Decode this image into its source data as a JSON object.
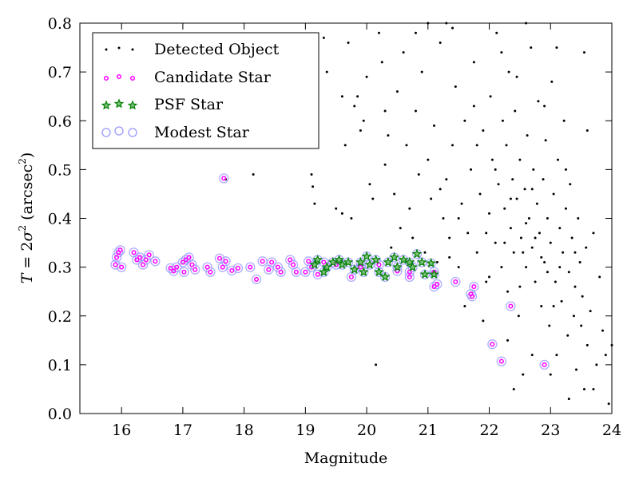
{
  "chart_data": {
    "type": "scatter",
    "xlabel": "Magnitude",
    "ylabel": "T = 2σ² (arcsec²)",
    "xlim": [
      15.32,
      24
    ],
    "ylim": [
      0,
      0.8
    ],
    "xticks": [
      "16",
      "17",
      "18",
      "19",
      "20",
      "21",
      "22",
      "23",
      "24"
    ],
    "yticks": [
      "0.0",
      "0.1",
      "0.2",
      "0.3",
      "0.4",
      "0.5",
      "0.6",
      "0.7",
      "0.8"
    ],
    "legend_position": "top-left",
    "series": [
      {
        "name": "Detected Object",
        "color": "#000000",
        "points": [
          [
            17.7,
            0.48
          ],
          [
            18.15,
            0.49
          ],
          [
            19.1,
            0.49
          ],
          [
            19.12,
            0.465
          ],
          [
            19.15,
            0.43
          ],
          [
            19.2,
            0.58
          ],
          [
            19.3,
            0.77
          ],
          [
            19.35,
            0.7
          ],
          [
            19.5,
            0.42
          ],
          [
            19.6,
            0.41
          ],
          [
            19.65,
            0.55
          ],
          [
            19.7,
            0.76
          ],
          [
            19.75,
            0.4
          ],
          [
            19.8,
            0.63
          ],
          [
            19.85,
            0.65
          ],
          [
            19.9,
            0.58
          ],
          [
            19.95,
            0.6
          ],
          [
            20.0,
            0.69
          ],
          [
            20.05,
            0.47
          ],
          [
            20.1,
            0.44
          ],
          [
            20.15,
            0.1
          ],
          [
            20.2,
            0.78
          ],
          [
            20.25,
            0.72
          ],
          [
            20.3,
            0.51
          ],
          [
            20.35,
            0.57
          ],
          [
            20.4,
            0.34
          ],
          [
            20.45,
            0.45
          ],
          [
            20.5,
            0.66
          ],
          [
            20.55,
            0.38
          ],
          [
            20.6,
            0.74
          ],
          [
            20.65,
            0.55
          ],
          [
            20.7,
            0.42
          ],
          [
            20.75,
            0.36
          ],
          [
            20.8,
            0.62
          ],
          [
            20.85,
            0.49
          ],
          [
            20.9,
            0.7
          ],
          [
            20.95,
            0.33
          ],
          [
            21.0,
            0.52
          ],
          [
            21.05,
            0.44
          ],
          [
            21.1,
            0.59
          ],
          [
            21.15,
            0.31
          ],
          [
            21.2,
            0.76
          ],
          [
            21.25,
            0.4
          ],
          [
            21.3,
            0.48
          ],
          [
            21.35,
            0.36
          ],
          [
            21.4,
            0.55
          ],
          [
            21.45,
            0.67
          ],
          [
            21.5,
            0.3
          ],
          [
            21.55,
            0.43
          ],
          [
            21.6,
            0.6
          ],
          [
            21.65,
            0.37
          ],
          [
            21.7,
            0.5
          ],
          [
            21.75,
            0.72
          ],
          [
            21.8,
            0.33
          ],
          [
            21.85,
            0.45
          ],
          [
            21.9,
            0.58
          ],
          [
            21.95,
            0.27
          ],
          [
            22.0,
            0.41
          ],
          [
            22.02,
            0.65
          ],
          [
            22.05,
            0.52
          ],
          [
            22.1,
            0.35
          ],
          [
            22.12,
            0.78
          ],
          [
            22.15,
            0.47
          ],
          [
            22.2,
            0.3
          ],
          [
            22.22,
            0.6
          ],
          [
            22.25,
            0.42
          ],
          [
            22.28,
            0.55
          ],
          [
            22.3,
            0.25
          ],
          [
            22.32,
            0.7
          ],
          [
            22.35,
            0.38
          ],
          [
            22.38,
            0.48
          ],
          [
            22.4,
            0.33
          ],
          [
            22.42,
            0.62
          ],
          [
            22.45,
            0.44
          ],
          [
            22.48,
            0.2
          ],
          [
            22.5,
            0.52
          ],
          [
            22.52,
            0.36
          ],
          [
            22.55,
            0.08
          ],
          [
            22.58,
            0.46
          ],
          [
            22.6,
            0.3
          ],
          [
            22.62,
            0.57
          ],
          [
            22.65,
            0.4
          ],
          [
            22.68,
            0.75
          ],
          [
            22.7,
            0.34
          ],
          [
            22.72,
            0.5
          ],
          [
            22.75,
            0.27
          ],
          [
            22.78,
            0.43
          ],
          [
            22.8,
            0.64
          ],
          [
            22.82,
            0.37
          ],
          [
            22.85,
            0.22
          ],
          [
            22.88,
            0.48
          ],
          [
            22.9,
            0.31
          ],
          [
            22.92,
            0.56
          ],
          [
            22.95,
            0.4
          ],
          [
            22.98,
            0.18
          ],
          [
            23.0,
            0.35
          ],
          [
            23.02,
            0.68
          ],
          [
            23.05,
            0.45
          ],
          [
            23.08,
            0.27
          ],
          [
            23.1,
            0.12
          ],
          [
            23.12,
            0.52
          ],
          [
            23.15,
            0.38
          ],
          [
            23.18,
            0.23
          ],
          [
            23.2,
            0.33
          ],
          [
            23.22,
            0.6
          ],
          [
            23.25,
            0.42
          ],
          [
            23.28,
            0.16
          ],
          [
            23.3,
            0.29
          ],
          [
            23.32,
            0.47
          ],
          [
            23.35,
            0.36
          ],
          [
            23.38,
            0.2
          ],
          [
            23.4,
            0.26
          ],
          [
            23.42,
            0.09
          ],
          [
            23.45,
            0.4
          ],
          [
            23.48,
            0.31
          ],
          [
            23.5,
            0.18
          ],
          [
            23.52,
            0.24
          ],
          [
            23.55,
            0.05
          ],
          [
            23.58,
            0.34
          ],
          [
            23.6,
            0.14
          ],
          [
            23.65,
            0.21
          ],
          [
            23.7,
            0.37
          ],
          [
            23.75,
            0.1
          ],
          [
            23.8,
            0.28
          ],
          [
            23.85,
            0.17
          ],
          [
            23.9,
            0.12
          ],
          [
            23.95,
            0.02
          ],
          [
            22.4,
            0.05
          ],
          [
            21.0,
            0.8
          ],
          [
            21.3,
            0.8
          ],
          [
            22.6,
            0.8
          ],
          [
            23.6,
            0.58
          ],
          [
            23.55,
            0.74
          ],
          [
            22.0,
            0.28
          ],
          [
            21.6,
            0.22
          ],
          [
            22.3,
            0.15
          ],
          [
            21.9,
            0.19
          ],
          [
            22.7,
            0.12
          ],
          [
            23.0,
            0.08
          ],
          [
            23.3,
            0.03
          ],
          [
            23.7,
            0.05
          ],
          [
            24.0,
            0.14
          ],
          [
            19.6,
            0.65
          ],
          [
            20.3,
            0.62
          ],
          [
            20.8,
            0.78
          ],
          [
            21.4,
            0.79
          ],
          [
            22.2,
            0.74
          ],
          [
            23.1,
            0.75
          ],
          [
            21.2,
            0.46
          ],
          [
            21.75,
            0.63
          ],
          [
            22.45,
            0.69
          ],
          [
            22.9,
            0.63
          ],
          [
            23.25,
            0.5
          ],
          [
            21.8,
            0.55
          ],
          [
            22.1,
            0.5
          ],
          [
            22.6,
            0.39
          ],
          [
            22.55,
            0.33
          ],
          [
            22.95,
            0.29
          ],
          [
            23.15,
            0.3
          ],
          [
            22.75,
            0.36
          ],
          [
            22.35,
            0.44
          ],
          [
            21.95,
            0.37
          ],
          [
            22.5,
            0.26
          ],
          [
            22.85,
            0.32
          ],
          [
            23.4,
            0.33
          ],
          [
            23.05,
            0.22
          ],
          [
            22.7,
            0.46
          ],
          [
            22.25,
            0.35
          ],
          [
            21.5,
            0.4
          ],
          [
            21.35,
            0.32
          ]
        ]
      },
      {
        "name": "Candidate Star",
        "color": "#ff00ff",
        "points": [
          [
            15.9,
            0.305
          ],
          [
            15.92,
            0.32
          ],
          [
            15.95,
            0.33
          ],
          [
            15.98,
            0.335
          ],
          [
            16.0,
            0.3
          ],
          [
            16.2,
            0.33
          ],
          [
            16.25,
            0.315
          ],
          [
            16.3,
            0.32
          ],
          [
            16.35,
            0.305
          ],
          [
            16.4,
            0.315
          ],
          [
            16.45,
            0.325
          ],
          [
            16.55,
            0.312
          ],
          [
            16.8,
            0.298
          ],
          [
            16.85,
            0.292
          ],
          [
            16.9,
            0.3
          ],
          [
            17.0,
            0.31
          ],
          [
            17.02,
            0.29
          ],
          [
            17.05,
            0.315
          ],
          [
            17.1,
            0.32
          ],
          [
            17.15,
            0.305
          ],
          [
            17.2,
            0.295
          ],
          [
            17.4,
            0.3
          ],
          [
            17.45,
            0.29
          ],
          [
            17.6,
            0.318
          ],
          [
            17.65,
            0.3
          ],
          [
            17.7,
            0.312
          ],
          [
            17.8,
            0.293
          ],
          [
            17.9,
            0.298
          ],
          [
            18.1,
            0.3
          ],
          [
            18.2,
            0.275
          ],
          [
            18.3,
            0.312
          ],
          [
            18.4,
            0.295
          ],
          [
            18.45,
            0.31
          ],
          [
            18.55,
            0.3
          ],
          [
            18.6,
            0.29
          ],
          [
            18.75,
            0.315
          ],
          [
            18.8,
            0.305
          ],
          [
            18.85,
            0.29
          ],
          [
            19.0,
            0.29
          ],
          [
            19.05,
            0.312
          ],
          [
            19.1,
            0.3
          ],
          [
            19.2,
            0.285
          ],
          [
            19.3,
            0.31
          ],
          [
            19.5,
            0.305
          ],
          [
            19.75,
            0.28
          ],
          [
            19.9,
            0.3
          ],
          [
            20.2,
            0.305
          ],
          [
            20.5,
            0.292
          ],
          [
            20.7,
            0.28
          ],
          [
            21.1,
            0.26
          ],
          [
            21.15,
            0.265
          ],
          [
            21.45,
            0.27
          ],
          [
            21.7,
            0.245
          ],
          [
            21.72,
            0.24
          ],
          [
            21.75,
            0.26
          ],
          [
            17.67,
            0.482
          ],
          [
            22.05,
            0.142
          ],
          [
            22.2,
            0.107
          ],
          [
            22.9,
            0.1
          ],
          [
            22.35,
            0.22
          ],
          [
            20.7,
            0.29
          ],
          [
            21.1,
            0.29
          ]
        ]
      },
      {
        "name": "PSF Star",
        "color": "#008000",
        "points": [
          [
            19.15,
            0.305
          ],
          [
            19.2,
            0.315
          ],
          [
            19.3,
            0.29
          ],
          [
            19.35,
            0.3
          ],
          [
            19.45,
            0.31
          ],
          [
            19.55,
            0.315
          ],
          [
            19.6,
            0.305
          ],
          [
            19.7,
            0.31
          ],
          [
            19.8,
            0.295
          ],
          [
            19.9,
            0.31
          ],
          [
            19.95,
            0.29
          ],
          [
            20.0,
            0.322
          ],
          [
            20.05,
            0.305
          ],
          [
            20.15,
            0.315
          ],
          [
            20.2,
            0.29
          ],
          [
            20.3,
            0.28
          ],
          [
            20.35,
            0.31
          ],
          [
            20.45,
            0.32
          ],
          [
            20.5,
            0.3
          ],
          [
            20.6,
            0.315
          ],
          [
            20.7,
            0.31
          ],
          [
            20.75,
            0.3
          ],
          [
            20.82,
            0.327
          ],
          [
            20.9,
            0.31
          ],
          [
            20.95,
            0.285
          ],
          [
            21.05,
            0.308
          ],
          [
            21.1,
            0.285
          ]
        ]
      },
      {
        "name": "Modest Star",
        "color": "#9999ff",
        "points": "union of Candidate Star and PSF Star"
      }
    ]
  }
}
